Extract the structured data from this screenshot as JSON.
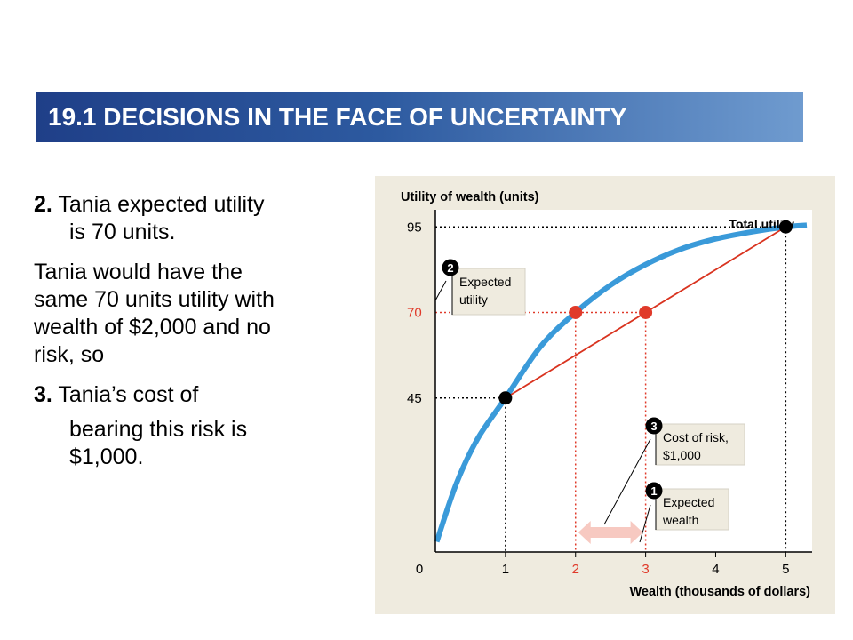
{
  "slide": {
    "title": "19.1 DECISIONS IN THE FACE OF UNCERTAINTY"
  },
  "text": {
    "p1_num": "2.",
    "p1_line1": "Tania expected utility",
    "p1_line2": "is 70 units.",
    "p2_line1": "Tania would have the",
    "p2_line2": "same 70 units utility with",
    "p2_line3": "wealth of $2,000 and no",
    "p2_line4": "risk, so",
    "p3_num": "3.",
    "p3_line1": "Tania’s cost of",
    "p3_line2": "bearing this risk is",
    "p3_line3": "$1,000."
  },
  "chart_data": {
    "type": "line",
    "ylabel": "Utility of wealth (units)",
    "xlabel": "Wealth (thousands of dollars)",
    "xlim": [
      0,
      5.3
    ],
    "ylim": [
      0,
      100
    ],
    "x_ticks": [
      "0",
      "1",
      "2",
      "3",
      "4",
      "5"
    ],
    "y_ticks": [
      "45",
      "70",
      "95"
    ],
    "series": [
      {
        "name": "Total utility",
        "color": "#3a9ad9",
        "points": [
          [
            0.02,
            3
          ],
          [
            0.3,
            20
          ],
          [
            0.6,
            33
          ],
          [
            1,
            45
          ],
          [
            1.5,
            60
          ],
          [
            2,
            70
          ],
          [
            2.5,
            78
          ],
          [
            3,
            84
          ],
          [
            3.5,
            88.5
          ],
          [
            4,
            91.5
          ],
          [
            4.5,
            93.5
          ],
          [
            5,
            95
          ],
          [
            5.3,
            95.5
          ]
        ]
      },
      {
        "color": "#d9331f",
        "points": [
          [
            1,
            45
          ],
          [
            5,
            95
          ]
        ]
      }
    ],
    "markers": [
      {
        "x": 1,
        "y": 45,
        "color": "#000000"
      },
      {
        "x": 5,
        "y": 95,
        "color": "#000000"
      },
      {
        "x": 2,
        "y": 70,
        "color": "#e03a2a"
      },
      {
        "x": 3,
        "y": 70,
        "color": "#e03a2a"
      }
    ],
    "highlight_ticks": [
      "2",
      "3"
    ],
    "highlight_y_ticks": [
      "70"
    ],
    "annotations": [
      {
        "num": "2",
        "lines": [
          "Expected",
          "utility"
        ]
      },
      {
        "num": "3",
        "lines": [
          "Cost of risk,",
          "$1,000"
        ]
      },
      {
        "num": "1",
        "lines": [
          "Expected",
          "wealth"
        ]
      }
    ],
    "colors": {
      "background": "#efebdf",
      "curve": "#3a9ad9",
      "line": "#d9331f",
      "highlight": "#e03a2a",
      "arrow": "#f7c9c1"
    }
  }
}
